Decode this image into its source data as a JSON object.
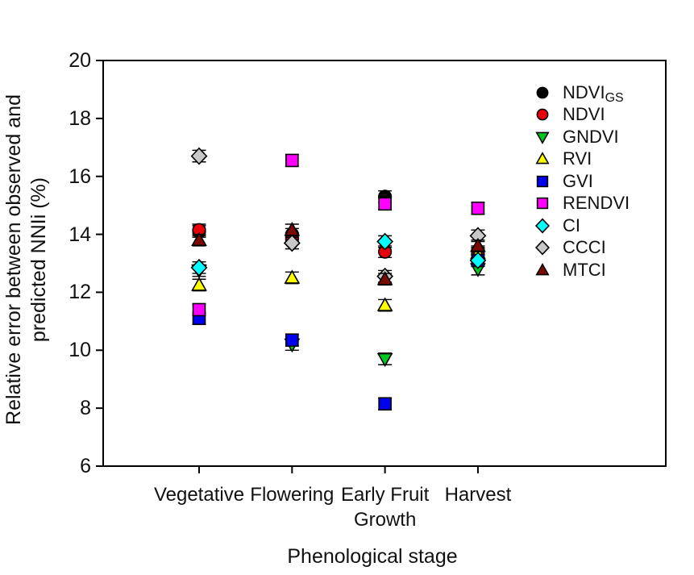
{
  "chart_data": {
    "type": "scatter",
    "title": "",
    "xlabel": "Phenological stage",
    "ylabel_lines": [
      "Relative error between observed and",
      "predicted NNIi (%)"
    ],
    "ylim": [
      6,
      20
    ],
    "yticks": [
      20,
      18,
      16,
      14,
      12,
      10,
      8,
      6
    ],
    "grid": false,
    "legend_position": "inside-top-right",
    "categories": [
      "Vegetative",
      "Flowering",
      "Early Fruit Growth",
      "Harvest"
    ],
    "category_label_lines": [
      [
        "Vegetative"
      ],
      [
        "Flowering"
      ],
      [
        "Early Fruit",
        "Growth"
      ],
      [
        "Harvest"
      ]
    ],
    "error_bar_approx": 0.2,
    "series": [
      {
        "name": "NDVIGS",
        "label": "NDVI",
        "label_sub": "GS",
        "marker": "circle",
        "color": "#000000",
        "values": [
          14.1,
          14.0,
          15.3,
          13.4
        ]
      },
      {
        "name": "NDVI",
        "label": "NDVI",
        "marker": "circle",
        "color": "#e8000d",
        "values": [
          14.15,
          13.85,
          13.4,
          13.3
        ]
      },
      {
        "name": "GNDVI",
        "label": "GNDVI",
        "marker": "triangle-down",
        "color": "#00c81e",
        "values": [
          12.75,
          10.2,
          9.7,
          12.8
        ]
      },
      {
        "name": "RVI",
        "label": "RVI",
        "marker": "triangle-up",
        "color": "#ffff00",
        "values": [
          12.25,
          12.5,
          11.55,
          13.35
        ]
      },
      {
        "name": "GVI",
        "label": "GVI",
        "marker": "square",
        "color": "#0000f0",
        "values": [
          11.1,
          10.35,
          8.15,
          13.1
        ]
      },
      {
        "name": "RENDVI",
        "label": "RENDVI",
        "marker": "square",
        "color": "#ff00ff",
        "values": [
          11.4,
          16.55,
          15.05,
          14.9
        ]
      },
      {
        "name": "CI",
        "label": "CI",
        "marker": "diamond",
        "color": "#00ffff",
        "values": [
          12.85,
          13.7,
          13.75,
          13.1
        ]
      },
      {
        "name": "CCCI",
        "label": "CCCI",
        "marker": "diamond",
        "color": "#c8c8c8",
        "values": [
          16.7,
          13.7,
          12.55,
          13.95
        ]
      },
      {
        "name": "MTCI",
        "label": "MTCI",
        "marker": "triangle-up",
        "color": "#7c0a02",
        "values": [
          13.8,
          14.15,
          12.45,
          13.6
        ]
      }
    ]
  }
}
